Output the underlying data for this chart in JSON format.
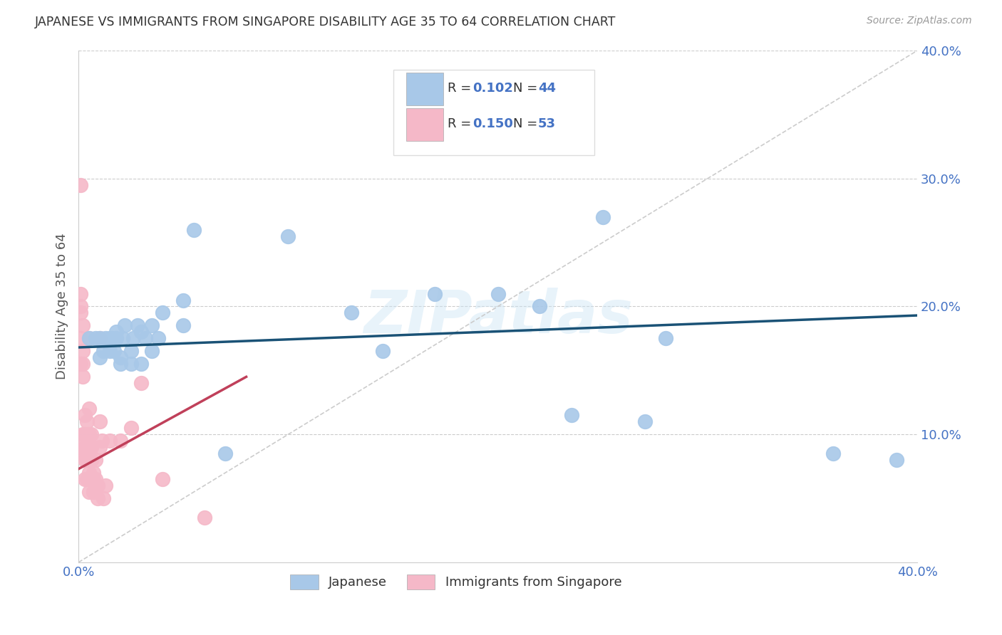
{
  "title": "JAPANESE VS IMMIGRANTS FROM SINGAPORE DISABILITY AGE 35 TO 64 CORRELATION CHART",
  "source": "Source: ZipAtlas.com",
  "ylabel": "Disability Age 35 to 64",
  "xlim": [
    0.0,
    0.4
  ],
  "ylim": [
    0.0,
    0.4
  ],
  "watermark": "ZIPatlas",
  "blue_color": "#a8c8e8",
  "pink_color": "#f5b8c8",
  "trendline_blue": "#1a5276",
  "trendline_pink": "#c0405a",
  "grid_color": "#cccccc",
  "axis_label_color": "#4472c4",
  "japanese_x": [
    0.005,
    0.008,
    0.01,
    0.01,
    0.012,
    0.013,
    0.015,
    0.015,
    0.016,
    0.017,
    0.018,
    0.018,
    0.02,
    0.02,
    0.021,
    0.022,
    0.025,
    0.025,
    0.026,
    0.028,
    0.03,
    0.03,
    0.032,
    0.035,
    0.035,
    0.038,
    0.04,
    0.05,
    0.05,
    0.055,
    0.07,
    0.1,
    0.13,
    0.145,
    0.17,
    0.2,
    0.22,
    0.235,
    0.25,
    0.27,
    0.28,
    0.36,
    0.39
  ],
  "japanese_y": [
    0.175,
    0.175,
    0.16,
    0.175,
    0.165,
    0.175,
    0.165,
    0.175,
    0.175,
    0.165,
    0.175,
    0.18,
    0.155,
    0.16,
    0.175,
    0.185,
    0.155,
    0.165,
    0.175,
    0.185,
    0.155,
    0.18,
    0.175,
    0.165,
    0.185,
    0.175,
    0.195,
    0.185,
    0.205,
    0.26,
    0.085,
    0.255,
    0.195,
    0.165,
    0.21,
    0.21,
    0.2,
    0.115,
    0.27,
    0.11,
    0.175,
    0.085,
    0.08
  ],
  "singapore_x": [
    0.001,
    0.001,
    0.001,
    0.001,
    0.001,
    0.001,
    0.001,
    0.002,
    0.002,
    0.002,
    0.002,
    0.002,
    0.002,
    0.003,
    0.003,
    0.003,
    0.003,
    0.003,
    0.004,
    0.004,
    0.004,
    0.004,
    0.004,
    0.005,
    0.005,
    0.005,
    0.005,
    0.005,
    0.005,
    0.005,
    0.006,
    0.006,
    0.006,
    0.006,
    0.007,
    0.007,
    0.007,
    0.008,
    0.008,
    0.009,
    0.009,
    0.01,
    0.01,
    0.01,
    0.011,
    0.012,
    0.013,
    0.015,
    0.02,
    0.025,
    0.03,
    0.04,
    0.06
  ],
  "singapore_y": [
    0.295,
    0.21,
    0.2,
    0.195,
    0.175,
    0.155,
    0.09,
    0.185,
    0.165,
    0.155,
    0.145,
    0.1,
    0.085,
    0.115,
    0.1,
    0.09,
    0.08,
    0.065,
    0.11,
    0.1,
    0.09,
    0.08,
    0.065,
    0.175,
    0.12,
    0.1,
    0.09,
    0.08,
    0.07,
    0.055,
    0.1,
    0.09,
    0.08,
    0.065,
    0.07,
    0.065,
    0.055,
    0.08,
    0.065,
    0.06,
    0.05,
    0.175,
    0.11,
    0.09,
    0.095,
    0.05,
    0.06,
    0.095,
    0.095,
    0.105,
    0.14,
    0.065,
    0.035
  ],
  "trendline_blue_endpoints": [
    [
      0.0,
      0.168
    ],
    [
      0.4,
      0.193
    ]
  ],
  "trendline_pink_endpoints": [
    [
      0.0,
      0.073
    ],
    [
      0.08,
      0.145
    ]
  ]
}
